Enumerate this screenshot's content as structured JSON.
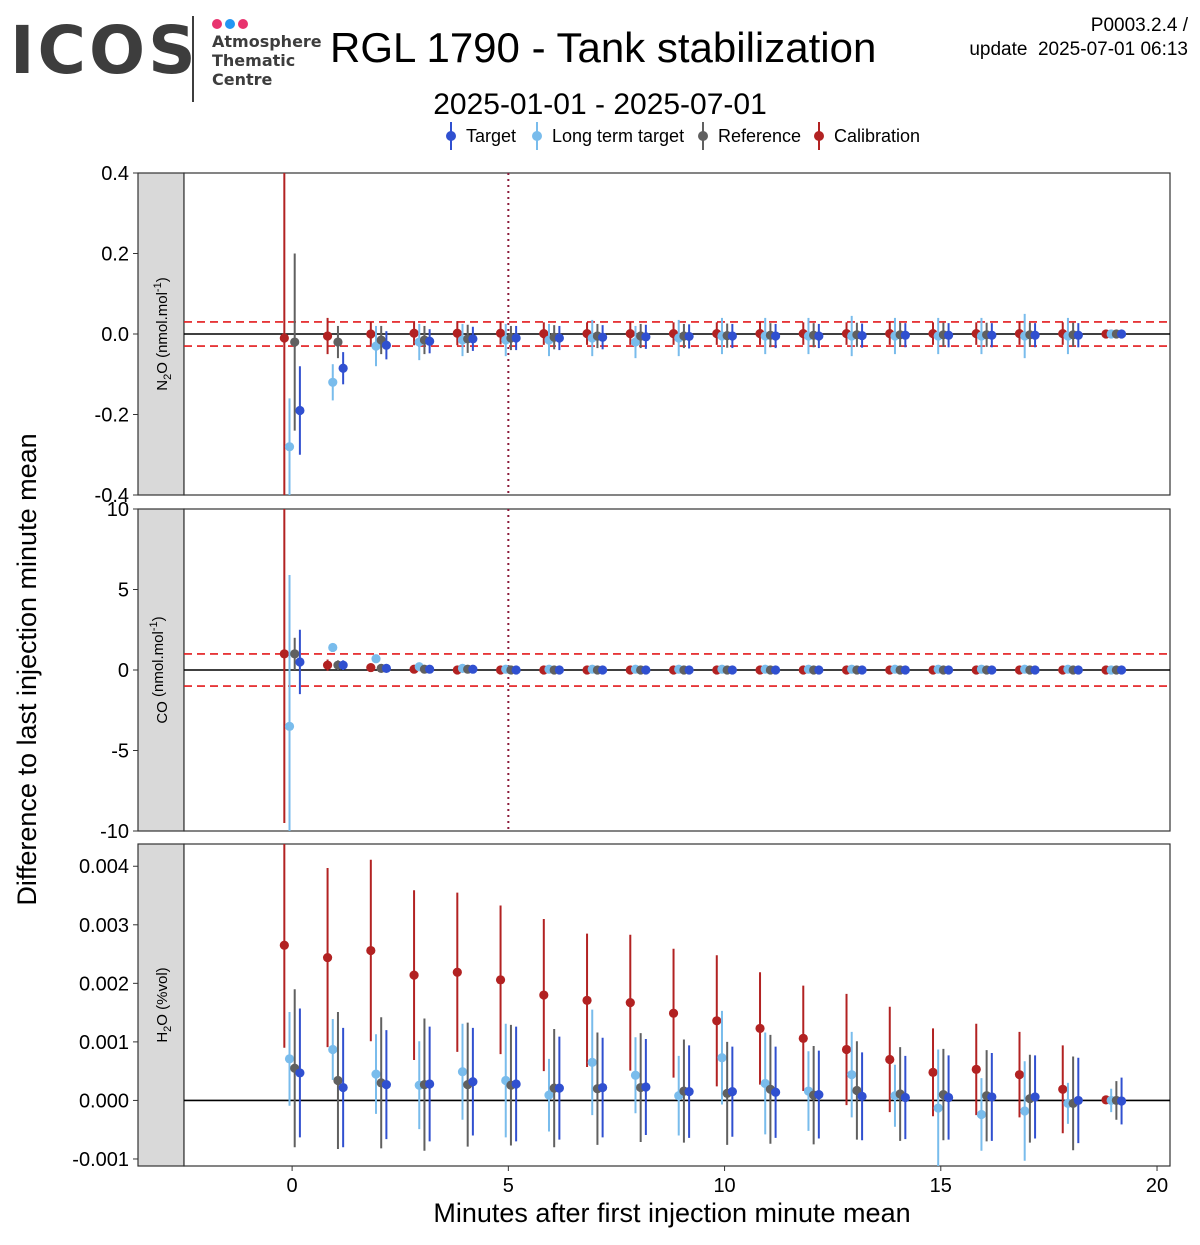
{
  "header": {
    "logo_text": "ICOS",
    "logo_lines": [
      "Atmosphere",
      "Thematic",
      "Centre"
    ],
    "logo_dot_colors": [
      "#e8336e",
      "#2196f3",
      "#e8336e"
    ],
    "title": "RGL 1790 - Tank stabilization",
    "version": "P0003.2.4 /",
    "update": "update  2025-07-01 06:13",
    "subtitle": "2025-01-01 - 2025-07-01"
  },
  "chart_data": {
    "type": "scatter",
    "title": "RGL 1790 - Tank stabilization",
    "subtitle": "2025-01-01 - 2025-07-01",
    "xlabel": "Minutes after first injection minute mean",
    "ylabel": "Difference to last injection minute mean",
    "xlim": [
      -2.5,
      20.3
    ],
    "xticks": [
      0,
      5,
      10,
      15,
      20
    ],
    "x": [
      0,
      1,
      2,
      3,
      4,
      5,
      6,
      7,
      8,
      9,
      10,
      11,
      12,
      13,
      14,
      15,
      16,
      17,
      18,
      19
    ],
    "vline_x": 5,
    "legend": {
      "position": "top",
      "entries": [
        {
          "name": "Target",
          "color": "#3050d0"
        },
        {
          "name": "Long term target",
          "color": "#79bcec"
        },
        {
          "name": "Reference",
          "color": "#606060"
        },
        {
          "name": "Calibration",
          "color": "#b22222"
        }
      ]
    },
    "series_order": [
      "Calibration",
      "Long term target",
      "Reference",
      "Target"
    ],
    "series_offsets_min": [
      -0.18,
      -0.06,
      0.06,
      0.18
    ],
    "panels": [
      {
        "strip_label": "N2O (nmol.mol-1)",
        "strip_main": "N",
        "strip_sub": "2",
        "strip_rest": "O (nmol.mol",
        "strip_sup": "-1",
        "strip_end": ")",
        "ylim": [
          -0.4,
          0.4
        ],
        "yticks": [
          -0.4,
          -0.2,
          0.0,
          0.2,
          0.4
        ],
        "ytick_labels": [
          "-0.4",
          "-0.2",
          "0.0",
          "0.2",
          "0.4"
        ],
        "threshold": 0.03,
        "series": [
          {
            "name": "Calibration",
            "values": [
              -0.01,
              -0.005,
              0,
              0.002,
              0.002,
              0.002,
              0.001,
              0.001,
              0.001,
              0.001,
              0.001,
              0.001,
              0.001,
              0.001,
              0.001,
              0.001,
              0.001,
              0.001,
              0.001,
              0
            ],
            "err": [
              0.42,
              0.045,
              0.03,
              0.03,
              0.03,
              0.028,
              0.028,
              0.028,
              0.028,
              0.028,
              0.028,
              0.028,
              0.028,
              0.028,
              0.028,
              0.028,
              0.028,
              0.028,
              0.028,
              0.005
            ]
          },
          {
            "name": "Long term target",
            "values": [
              -0.28,
              -0.12,
              -0.03,
              -0.02,
              -0.015,
              -0.015,
              -0.015,
              -0.01,
              -0.02,
              -0.01,
              -0.005,
              -0.005,
              -0.005,
              -0.005,
              -0.005,
              -0.005,
              -0.005,
              -0.005,
              -0.005,
              0
            ],
            "err": [
              0.12,
              0.045,
              0.05,
              0.045,
              0.04,
              0.04,
              0.04,
              0.045,
              0.04,
              0.045,
              0.045,
              0.045,
              0.045,
              0.05,
              0.045,
              0.045,
              0.045,
              0.055,
              0.045,
              0.005
            ]
          },
          {
            "name": "Reference",
            "values": [
              -0.02,
              -0.02,
              -0.015,
              -0.015,
              -0.012,
              -0.01,
              -0.008,
              -0.005,
              -0.005,
              -0.005,
              -0.004,
              -0.003,
              -0.003,
              -0.002,
              -0.002,
              -0.002,
              -0.002,
              -0.002,
              -0.002,
              0
            ],
            "err": [
              0.22,
              0.04,
              0.035,
              0.035,
              0.035,
              0.03,
              0.03,
              0.03,
              0.03,
              0.03,
              0.03,
              0.03,
              0.03,
              0.03,
              0.03,
              0.03,
              0.03,
              0.03,
              0.03,
              0.005
            ]
          },
          {
            "name": "Target",
            "values": [
              -0.19,
              -0.085,
              -0.028,
              -0.018,
              -0.012,
              -0.01,
              -0.01,
              -0.008,
              -0.007,
              -0.006,
              -0.005,
              -0.005,
              -0.005,
              -0.004,
              -0.003,
              -0.003,
              -0.003,
              -0.003,
              -0.003,
              0
            ],
            "err": [
              0.11,
              0.04,
              0.035,
              0.03,
              0.03,
              0.03,
              0.03,
              0.03,
              0.03,
              0.03,
              0.03,
              0.03,
              0.03,
              0.03,
              0.03,
              0.03,
              0.03,
              0.03,
              0.03,
              0.005
            ]
          }
        ]
      },
      {
        "strip_label": "CO (nmol.mol-1)",
        "strip_main": "CO",
        "strip_sub": "",
        "strip_rest": " (nmol.mol",
        "strip_sup": "-1",
        "strip_end": ")",
        "ylim": [
          -10,
          10
        ],
        "yticks": [
          -10,
          -5,
          0,
          5,
          10
        ],
        "ytick_labels": [
          "-10",
          "-5",
          "0",
          "5",
          "10"
        ],
        "threshold": 1,
        "series": [
          {
            "name": "Calibration",
            "values": [
              1.0,
              0.3,
              0.15,
              0.05,
              0,
              0,
              0,
              0,
              0,
              0,
              0,
              0,
              0,
              0,
              0,
              0,
              0,
              0,
              0,
              0
            ],
            "err": [
              10.5,
              0.35,
              0.25,
              0.15,
              0.1,
              0.1,
              0.1,
              0.1,
              0.1,
              0.1,
              0.1,
              0.1,
              0.1,
              0.1,
              0.1,
              0.1,
              0.1,
              0.1,
              0.1,
              0.05
            ]
          },
          {
            "name": "Long term target",
            "values": [
              -3.5,
              1.4,
              0.7,
              0.2,
              0.1,
              0.05,
              0.05,
              0.05,
              0.05,
              0.05,
              0.05,
              0.05,
              0.05,
              0.05,
              0.05,
              0.05,
              0.05,
              0.05,
              0.05,
              0
            ],
            "err": [
              9.4,
              0.2,
              0.15,
              0.1,
              0.1,
              0.1,
              0.1,
              0.1,
              0.1,
              0.1,
              0.1,
              0.1,
              0.1,
              0.1,
              0.1,
              0.1,
              0.1,
              0.1,
              0.1,
              0.05
            ]
          },
          {
            "name": "Reference",
            "values": [
              1.0,
              0.3,
              0.1,
              0.05,
              0.05,
              0,
              0,
              0,
              0,
              0,
              0,
              0,
              0,
              0,
              0,
              0,
              0,
              0,
              0,
              0
            ],
            "err": [
              1.0,
              0.3,
              0.2,
              0.15,
              0.1,
              0.1,
              0.1,
              0.1,
              0.1,
              0.1,
              0.1,
              0.1,
              0.1,
              0.1,
              0.1,
              0.1,
              0.1,
              0.1,
              0.1,
              0.05
            ]
          },
          {
            "name": "Target",
            "values": [
              0.5,
              0.3,
              0.1,
              0.05,
              0.05,
              0,
              0,
              0,
              0,
              0,
              0,
              0,
              0,
              0,
              0,
              0,
              0,
              0,
              0,
              0
            ],
            "err": [
              2.0,
              0.3,
              0.2,
              0.15,
              0.1,
              0.1,
              0.1,
              0.1,
              0.1,
              0.1,
              0.1,
              0.1,
              0.1,
              0.1,
              0.1,
              0.1,
              0.1,
              0.1,
              0.1,
              0.05
            ]
          }
        ]
      },
      {
        "strip_label": "H2O (%vol)",
        "strip_main": "H",
        "strip_sub": "2",
        "strip_rest": "O (%vol)",
        "strip_sup": "",
        "strip_end": "",
        "ylim": [
          -0.00112,
          0.00438
        ],
        "yticks": [
          -0.001,
          0,
          0.001,
          0.002,
          0.003,
          0.004
        ],
        "ytick_labels": [
          "-0.001",
          "0.000",
          "0.001",
          "0.002",
          "0.003",
          "0.004"
        ],
        "threshold": null,
        "series": [
          {
            "name": "Calibration",
            "values": [
              0.00265,
              0.00244,
              0.00256,
              0.00214,
              0.00219,
              0.00206,
              0.0018,
              0.00171,
              0.00167,
              0.00149,
              0.00136,
              0.00123,
              0.00106,
              0.00087,
              0.0007,
              0.00048,
              0.00053,
              0.00044,
              0.00019,
              1e-05
            ],
            "err": [
              0.00175,
              0.00153,
              0.00155,
              0.00145,
              0.00136,
              0.00127,
              0.0013,
              0.00114,
              0.00116,
              0.0011,
              0.00112,
              0.00096,
              0.0009,
              0.00095,
              0.0009,
              0.00075,
              0.00078,
              0.00073,
              0.00075,
              3e-05
            ]
          },
          {
            "name": "Long term target",
            "values": [
              0.00071,
              0.00087,
              0.00045,
              0.00026,
              0.00049,
              0.00034,
              9e-05,
              0.00065,
              0.00043,
              8e-05,
              0.00073,
              0.00029,
              0.00016,
              0.00044,
              8e-05,
              -0.00013,
              -0.00024,
              -0.00018,
              -5e-05,
              0
            ],
            "err": [
              0.0008,
              0.00052,
              0.00068,
              0.00075,
              0.00082,
              0.00097,
              0.00062,
              0.0009,
              0.00065,
              0.00068,
              0.0008,
              0.00087,
              0.00068,
              0.00073,
              0.00053,
              0.001,
              0.00062,
              0.00085,
              0.00035,
              0.0002
            ]
          },
          {
            "name": "Reference",
            "values": [
              0.00055,
              0.00034,
              0.0003,
              0.00027,
              0.00027,
              0.00026,
              0.00021,
              0.0002,
              0.00022,
              0.00016,
              0.00012,
              0.00019,
              9e-05,
              0.00017,
              0.00011,
              0.0001,
              8e-05,
              3e-05,
              -5e-05,
              0
            ],
            "err": [
              0.00135,
              0.00117,
              0.00112,
              0.00113,
              0.00106,
              0.00103,
              0.00101,
              0.00096,
              0.00093,
              0.00088,
              0.00088,
              0.00093,
              0.00084,
              0.00084,
              0.0008,
              0.00078,
              0.00078,
              0.00075,
              0.0008,
              0.00033
            ]
          },
          {
            "name": "Target",
            "values": [
              0.00047,
              0.00022,
              0.00027,
              0.00028,
              0.00032,
              0.00028,
              0.00021,
              0.00022,
              0.00023,
              0.00015,
              0.00015,
              0.00014,
              0.0001,
              7e-05,
              5e-05,
              5e-05,
              6e-05,
              6e-05,
              0,
              -1e-05
            ],
            "err": [
              0.0011,
              0.00102,
              0.00093,
              0.00098,
              0.00092,
              0.00098,
              0.00088,
              0.00085,
              0.00082,
              0.00079,
              0.00077,
              0.00078,
              0.00075,
              0.00075,
              0.00071,
              0.00072,
              0.00075,
              0.00071,
              0.00073,
              0.0004
            ]
          }
        ]
      }
    ]
  }
}
